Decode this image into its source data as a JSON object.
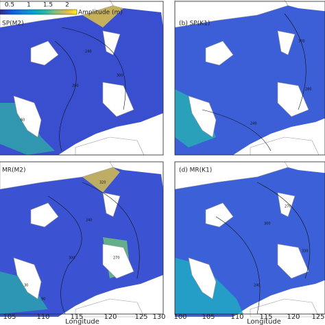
{
  "colorbar": {
    "ticks": [
      "0.5",
      "1",
      "1.5",
      "2"
    ],
    "label": "Amplitude (m)"
  },
  "panels": [
    {
      "title": "SP(M2)",
      "contours": [
        "240",
        "280",
        "300",
        "60"
      ]
    },
    {
      "title": "(b) SP(K1)",
      "contours": [
        "300",
        "240",
        "280"
      ]
    },
    {
      "title": "MR(M2)",
      "contours": [
        "320",
        "240",
        "300",
        "270",
        "30",
        "90"
      ]
    },
    {
      "title": "(d) MR(K1)",
      "contours": [
        "270",
        "300",
        "330",
        "240"
      ]
    }
  ],
  "x_axes": [
    {
      "ticks": [
        "105",
        "110",
        "115",
        "120",
        "125",
        "130"
      ],
      "label": "Longitude"
    },
    {
      "ticks": [
        "100",
        "105",
        "110",
        "115",
        "120",
        "125"
      ],
      "label": "Longitude"
    }
  ]
}
